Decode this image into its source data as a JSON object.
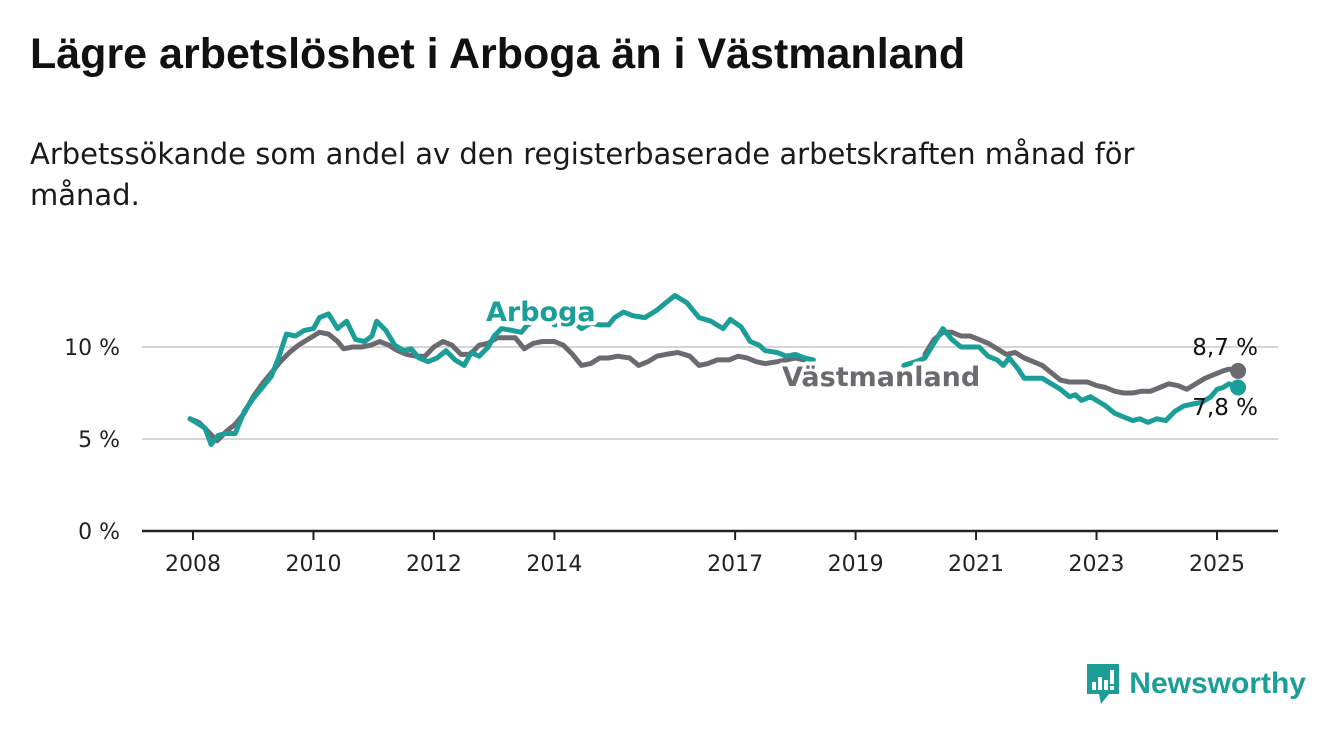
{
  "header": {
    "title": "Lägre arbetslöshet i Arboga än i Västmanland",
    "subtitle": "Arbetssökande som andel av den registerbaserade arbetskraften månad för månad."
  },
  "brand": {
    "name": "Newsworthy",
    "icon": "newsworthy-logo-icon",
    "color": "#1b9e97"
  },
  "chart_data": {
    "type": "line",
    "title": "Lägre arbetslöshet i Arboga än i Västmanland",
    "subtitle": "Arbetssökande som andel av den registerbaserade arbetskraften månad för månad.",
    "xlabel": "",
    "ylabel": "",
    "xlim": [
      2007.6,
      2026.0
    ],
    "ylim": [
      0,
      13
    ],
    "y_ticks": [
      {
        "value": 0,
        "label": "0 %"
      },
      {
        "value": 5,
        "label": "5 %"
      },
      {
        "value": 10,
        "label": "10 %"
      }
    ],
    "x_ticks": [
      {
        "value": 2008,
        "label": "2008"
      },
      {
        "value": 2010,
        "label": "2010"
      },
      {
        "value": 2012,
        "label": "2012"
      },
      {
        "value": 2014,
        "label": "2014"
      },
      {
        "value": 2017,
        "label": "2017"
      },
      {
        "value": 2019,
        "label": "2019"
      },
      {
        "value": 2021,
        "label": "2021"
      },
      {
        "value": 2023,
        "label": "2023"
      },
      {
        "value": 2025,
        "label": "2025"
      }
    ],
    "grid": "horizontal",
    "legend": "inline labels",
    "series": [
      {
        "name": "Arboga",
        "color": "#1b9e97",
        "end_label": "7,8 %",
        "points": [
          [
            2007.95,
            6.1
          ],
          [
            2008.1,
            5.8
          ],
          [
            2008.2,
            5.6
          ],
          [
            2008.3,
            4.7
          ],
          [
            2008.42,
            5.2
          ],
          [
            2008.55,
            5.3
          ],
          [
            2008.7,
            5.3
          ],
          [
            2008.85,
            6.5
          ],
          [
            2009.0,
            7.2
          ],
          [
            2009.15,
            7.8
          ],
          [
            2009.3,
            8.4
          ],
          [
            2009.42,
            9.4
          ],
          [
            2009.55,
            10.7
          ],
          [
            2009.7,
            10.6
          ],
          [
            2009.85,
            10.9
          ],
          [
            2010.0,
            11.0
          ],
          [
            2010.1,
            11.6
          ],
          [
            2010.25,
            11.8
          ],
          [
            2010.4,
            11.0
          ],
          [
            2010.55,
            11.4
          ],
          [
            2010.7,
            10.4
          ],
          [
            2010.85,
            10.3
          ],
          [
            2010.97,
            10.6
          ],
          [
            2011.05,
            11.4
          ],
          [
            2011.2,
            10.9
          ],
          [
            2011.35,
            10.1
          ],
          [
            2011.5,
            9.8
          ],
          [
            2011.62,
            9.9
          ],
          [
            2011.75,
            9.4
          ],
          [
            2011.9,
            9.2
          ],
          [
            2012.05,
            9.4
          ],
          [
            2012.2,
            9.8
          ],
          [
            2012.35,
            9.3
          ],
          [
            2012.5,
            9.0
          ],
          [
            2012.62,
            9.7
          ],
          [
            2012.75,
            9.5
          ],
          [
            2012.9,
            10.0
          ],
          [
            2013.0,
            10.6
          ],
          [
            2013.12,
            11.0
          ],
          [
            2013.3,
            10.9
          ],
          [
            2013.45,
            10.8
          ],
          [
            2013.55,
            11.2
          ],
          [
            2013.7,
            11.4
          ],
          [
            2013.85,
            11.9
          ],
          [
            2014.0,
            11.2
          ],
          [
            2014.15,
            11.3
          ],
          [
            2014.3,
            11.4
          ],
          [
            2014.45,
            11.0
          ],
          [
            2014.6,
            11.3
          ],
          [
            2014.75,
            11.2
          ],
          [
            2014.9,
            11.2
          ],
          [
            2015.0,
            11.6
          ],
          [
            2015.15,
            11.9
          ],
          [
            2015.3,
            11.7
          ],
          [
            2015.5,
            11.6
          ],
          [
            2015.7,
            12.0
          ],
          [
            2015.85,
            12.4
          ],
          [
            2016.0,
            12.8
          ],
          [
            2016.2,
            12.4
          ],
          [
            2016.4,
            11.6
          ],
          [
            2016.6,
            11.4
          ],
          [
            2016.8,
            11.0
          ],
          [
            2016.92,
            11.5
          ],
          [
            2017.1,
            11.1
          ],
          [
            2017.25,
            10.3
          ],
          [
            2017.4,
            10.1
          ],
          [
            2017.5,
            9.8
          ],
          [
            2017.7,
            9.7
          ],
          [
            2017.85,
            9.5
          ],
          [
            2018.0,
            9.6
          ],
          [
            2018.15,
            9.4
          ],
          [
            2018.3,
            9.3
          ],
          [
            2019.8,
            9.0
          ],
          [
            2020.0,
            9.2
          ],
          [
            2020.15,
            9.4
          ],
          [
            2020.3,
            10.2
          ],
          [
            2020.45,
            11.0
          ],
          [
            2020.6,
            10.4
          ],
          [
            2020.75,
            10.0
          ],
          [
            2020.9,
            10.0
          ],
          [
            2021.05,
            10.0
          ],
          [
            2021.2,
            9.5
          ],
          [
            2021.35,
            9.3
          ],
          [
            2021.45,
            9.0
          ],
          [
            2021.55,
            9.4
          ],
          [
            2021.7,
            8.8
          ],
          [
            2021.8,
            8.3
          ],
          [
            2021.95,
            8.3
          ],
          [
            2022.1,
            8.3
          ],
          [
            2022.25,
            8.0
          ],
          [
            2022.4,
            7.7
          ],
          [
            2022.55,
            7.3
          ],
          [
            2022.65,
            7.4
          ],
          [
            2022.75,
            7.1
          ],
          [
            2022.9,
            7.3
          ],
          [
            2023.0,
            7.1
          ],
          [
            2023.15,
            6.8
          ],
          [
            2023.3,
            6.4
          ],
          [
            2023.45,
            6.2
          ],
          [
            2023.6,
            6.0
          ],
          [
            2023.72,
            6.1
          ],
          [
            2023.85,
            5.9
          ],
          [
            2024.0,
            6.1
          ],
          [
            2024.15,
            6.0
          ],
          [
            2024.3,
            6.5
          ],
          [
            2024.45,
            6.8
          ],
          [
            2024.6,
            6.9
          ],
          [
            2024.75,
            7.0
          ],
          [
            2024.9,
            7.3
          ],
          [
            2025.0,
            7.7
          ],
          [
            2025.1,
            7.8
          ],
          [
            2025.2,
            8.0
          ],
          [
            2025.35,
            7.8
          ]
        ]
      },
      {
        "name": "Västmanland",
        "color": "#6b6a70",
        "end_label": "8,7 %",
        "points": [
          [
            2007.95,
            6.1
          ],
          [
            2008.1,
            5.9
          ],
          [
            2008.25,
            5.4
          ],
          [
            2008.4,
            4.9
          ],
          [
            2008.55,
            5.4
          ],
          [
            2008.7,
            5.8
          ],
          [
            2008.85,
            6.4
          ],
          [
            2009.0,
            7.3
          ],
          [
            2009.15,
            8.0
          ],
          [
            2009.3,
            8.6
          ],
          [
            2009.45,
            9.2
          ],
          [
            2009.6,
            9.7
          ],
          [
            2009.75,
            10.1
          ],
          [
            2009.9,
            10.4
          ],
          [
            2010.0,
            10.6
          ],
          [
            2010.1,
            10.8
          ],
          [
            2010.25,
            10.7
          ],
          [
            2010.4,
            10.3
          ],
          [
            2010.5,
            9.9
          ],
          [
            2010.65,
            10.0
          ],
          [
            2010.8,
            10.0
          ],
          [
            2010.95,
            10.1
          ],
          [
            2011.1,
            10.3
          ],
          [
            2011.25,
            10.1
          ],
          [
            2011.4,
            9.8
          ],
          [
            2011.55,
            9.6
          ],
          [
            2011.7,
            9.5
          ],
          [
            2011.85,
            9.5
          ],
          [
            2012.0,
            10.0
          ],
          [
            2012.15,
            10.3
          ],
          [
            2012.3,
            10.1
          ],
          [
            2012.45,
            9.6
          ],
          [
            2012.6,
            9.6
          ],
          [
            2012.75,
            10.1
          ],
          [
            2012.9,
            10.2
          ],
          [
            2013.05,
            10.5
          ],
          [
            2013.2,
            10.5
          ],
          [
            2013.35,
            10.5
          ],
          [
            2013.5,
            9.9
          ],
          [
            2013.65,
            10.2
          ],
          [
            2013.8,
            10.3
          ],
          [
            2014.0,
            10.3
          ],
          [
            2014.15,
            10.1
          ],
          [
            2014.3,
            9.6
          ],
          [
            2014.45,
            9.0
          ],
          [
            2014.6,
            9.1
          ],
          [
            2014.75,
            9.4
          ],
          [
            2014.9,
            9.4
          ],
          [
            2015.05,
            9.5
          ],
          [
            2015.25,
            9.4
          ],
          [
            2015.4,
            9.0
          ],
          [
            2015.55,
            9.2
          ],
          [
            2015.7,
            9.5
          ],
          [
            2015.85,
            9.6
          ],
          [
            2016.05,
            9.7
          ],
          [
            2016.25,
            9.5
          ],
          [
            2016.4,
            9.0
          ],
          [
            2016.55,
            9.1
          ],
          [
            2016.7,
            9.3
          ],
          [
            2016.9,
            9.3
          ],
          [
            2017.05,
            9.5
          ],
          [
            2017.2,
            9.4
          ],
          [
            2017.35,
            9.2
          ],
          [
            2017.5,
            9.1
          ],
          [
            2017.7,
            9.2
          ],
          [
            2017.85,
            9.3
          ],
          [
            2018.0,
            9.4
          ],
          [
            2018.15,
            9.3
          ],
          [
            2020.15,
            9.6
          ],
          [
            2020.3,
            10.4
          ],
          [
            2020.45,
            10.8
          ],
          [
            2020.6,
            10.8
          ],
          [
            2020.75,
            10.6
          ],
          [
            2020.9,
            10.6
          ],
          [
            2021.05,
            10.4
          ],
          [
            2021.2,
            10.2
          ],
          [
            2021.35,
            9.9
          ],
          [
            2021.5,
            9.6
          ],
          [
            2021.65,
            9.7
          ],
          [
            2021.8,
            9.4
          ],
          [
            2021.95,
            9.2
          ],
          [
            2022.1,
            9.0
          ],
          [
            2022.25,
            8.6
          ],
          [
            2022.4,
            8.2
          ],
          [
            2022.55,
            8.1
          ],
          [
            2022.7,
            8.1
          ],
          [
            2022.85,
            8.1
          ],
          [
            2023.0,
            7.9
          ],
          [
            2023.15,
            7.8
          ],
          [
            2023.3,
            7.6
          ],
          [
            2023.45,
            7.5
          ],
          [
            2023.6,
            7.5
          ],
          [
            2023.75,
            7.6
          ],
          [
            2023.9,
            7.6
          ],
          [
            2024.05,
            7.8
          ],
          [
            2024.2,
            8.0
          ],
          [
            2024.35,
            7.9
          ],
          [
            2024.5,
            7.7
          ],
          [
            2024.65,
            8.0
          ],
          [
            2024.8,
            8.3
          ],
          [
            2024.95,
            8.5
          ],
          [
            2025.1,
            8.7
          ],
          [
            2025.2,
            8.8
          ],
          [
            2025.35,
            8.7
          ]
        ]
      }
    ]
  }
}
